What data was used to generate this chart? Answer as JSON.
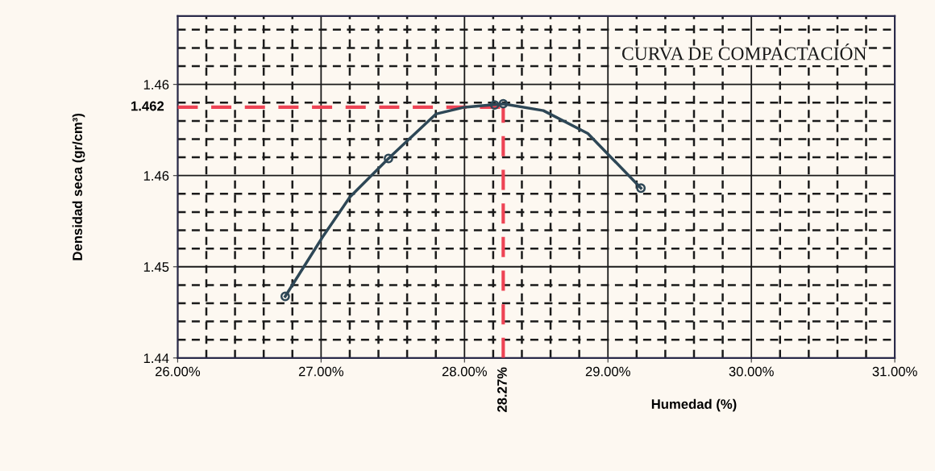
{
  "chart_data": {
    "type": "line",
    "title": "CURVA DE COMPACTACIÓN",
    "xlabel": "Humedad (%)",
    "ylabel": "Densidad seca (gr/cm³)",
    "xlim": [
      26,
      31
    ],
    "xticks": [
      {
        "value": 26,
        "label": "26.00%"
      },
      {
        "value": 27,
        "label": "27.00%"
      },
      {
        "value": 28,
        "label": "28.00%"
      },
      {
        "value": 29,
        "label": "29.00%"
      },
      {
        "value": 30,
        "label": "30.00%"
      },
      {
        "value": 31,
        "label": "31.00%"
      }
    ],
    "ylim": [
      1.44,
      1.47
    ],
    "yticks": [
      {
        "value": 1.44,
        "label": "1.44"
      },
      {
        "value": 1.448,
        "label": "1.45"
      },
      {
        "value": 1.456,
        "label": "1.46"
      },
      {
        "value": 1.464,
        "label": "1.46"
      }
    ],
    "grid": true,
    "series": [
      {
        "color": "#2e4756",
        "marker": "none",
        "x": [
          26.75,
          27.01,
          27.2,
          27.47,
          27.8,
          28.0,
          28.27,
          28.55,
          28.86,
          29.23
        ],
        "values": [
          1.4454,
          1.4506,
          1.4541,
          1.4575,
          1.4614,
          1.462,
          1.4623,
          1.4617,
          1.4597,
          1.4549
        ]
      },
      {
        "type": "scatter",
        "color": "#2e4756",
        "marker": "circle",
        "x": [
          26.75,
          27.47,
          28.21,
          28.27,
          29.23
        ],
        "values": [
          1.4454,
          1.4575,
          1.4622,
          1.4623,
          1.4549
        ]
      }
    ],
    "ref_lines": [
      {
        "axis": "y",
        "value": 1.462,
        "label": "1.462",
        "color": "#ee4455",
        "line_style": "dashed"
      },
      {
        "axis": "x",
        "value": 28.27,
        "label": "28.27%",
        "color": "#ee4455",
        "line_style": "dashed"
      }
    ]
  }
}
